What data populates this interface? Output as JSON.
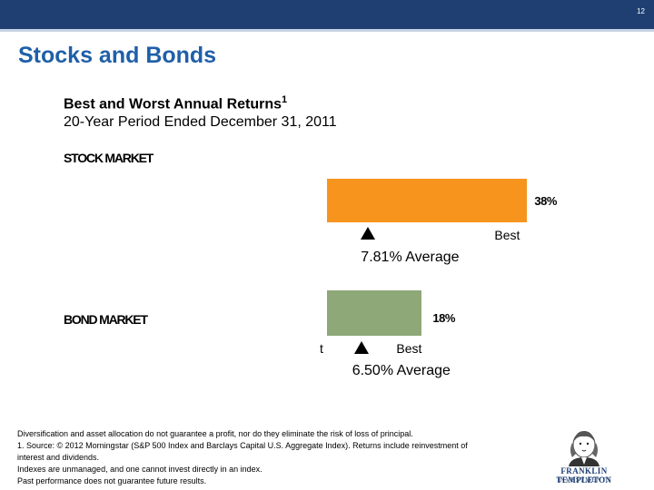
{
  "page": {
    "number": "12",
    "title": "Stocks and Bonds"
  },
  "chart_data": {
    "type": "bar",
    "orientation": "horizontal",
    "title": "Best and Worst Annual Returns",
    "title_footnote": "1",
    "subtitle": "20-Year Period Ended December 31, 2011",
    "unit": "%",
    "series": [
      {
        "name": "STOCK MARKET",
        "best_value": 38,
        "best_label": "38%",
        "best_tag": "Best",
        "average_value": 7.81,
        "average_label": "7.81% Average",
        "color": "#f7941d"
      },
      {
        "name": "BOND MARKET",
        "best_value": 18,
        "best_label": "18%",
        "best_tag": "Best",
        "clipped_tag": "t",
        "average_value": 6.5,
        "average_label": "6.50% Average",
        "color": "#8ea878"
      }
    ]
  },
  "footnotes": [
    "Diversification and asset allocation do not guarantee a profit, nor do they eliminate the risk of loss of principal.",
    "1. Source: © 2012 Morningstar (S&P 500 Index and Barclays Capital U.S. Aggregate Index). Returns include reinvestment of",
    "interest and dividends.",
    "Indexes are unmanaged, and one cannot invest directly in an index.",
    "Past performance does not guarantee future results."
  ],
  "logo": {
    "line1": "FRANKLIN TEMPLETON",
    "line2": "INVESTMENTS",
    "icon": "franklin-portrait-icon"
  },
  "colors": {
    "header_bar": "#1f3f73",
    "title": "#1f5fa8",
    "stock_bar": "#f7941d",
    "bond_bar": "#8ea878"
  }
}
